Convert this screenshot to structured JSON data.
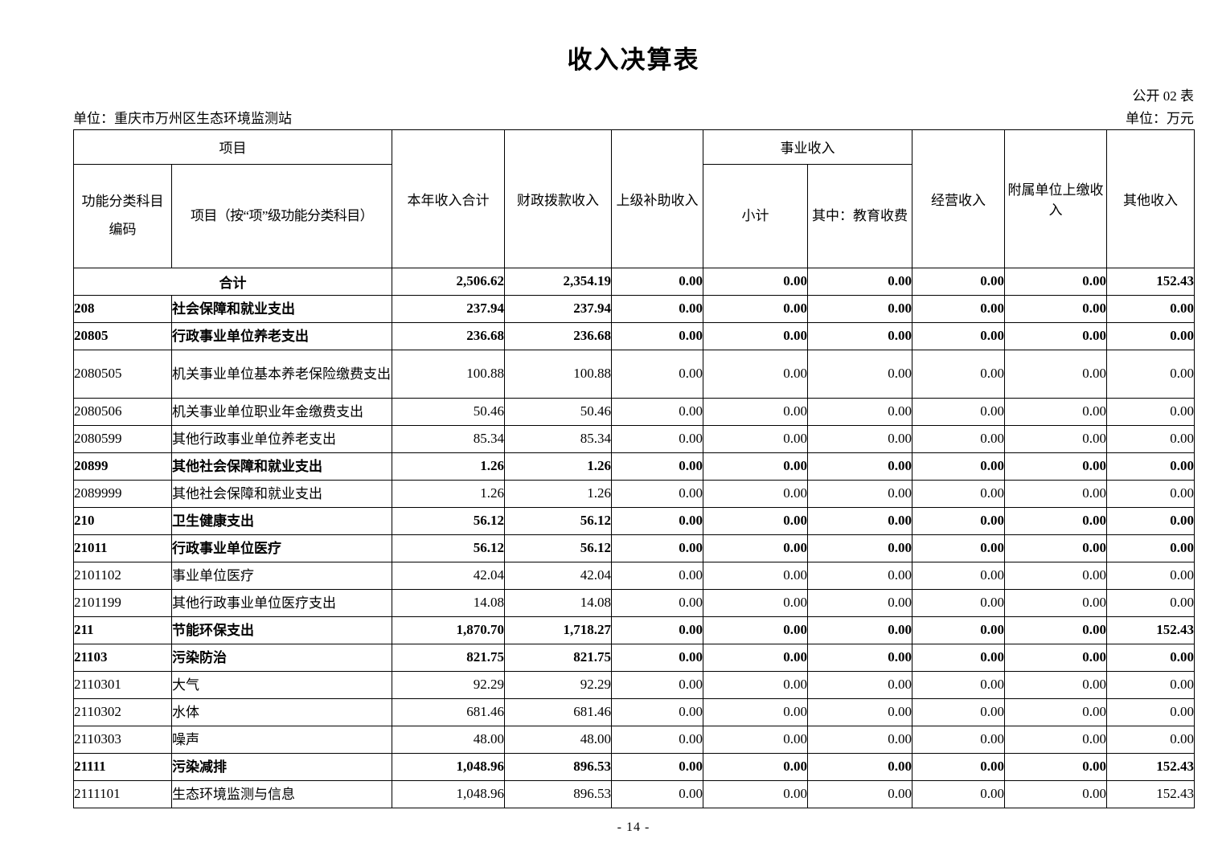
{
  "page": {
    "title": "收入决算表",
    "form_code": "公开 02 表",
    "unit_name": "单位：重庆市万州区生态环境监测站",
    "unit_currency": "单位：万元",
    "page_number": "- 14 -"
  },
  "table": {
    "header": {
      "project_group": "项目",
      "code_col": "功能分类科目编码",
      "name_col": "项目（按“项”级功能分类科目）",
      "total_col": "本年收入合计",
      "fiscal_col": "财政拨款收入",
      "superior_col": "上级补助收入",
      "business_group": "事业收入",
      "business_subtotal_col": "小计",
      "business_edu_col": "其中：教育收费",
      "operating_col": "经营收入",
      "affiliated_col": "附属单位上缴收入",
      "other_col": "其他收入"
    },
    "rows": [
      {
        "code": "",
        "name": "合计",
        "bold": true,
        "total": true,
        "values": [
          "2,506.62",
          "2,354.19",
          "0.00",
          "0.00",
          "0.00",
          "0.00",
          "0.00",
          "152.43"
        ]
      },
      {
        "code": "208",
        "name": "社会保障和就业支出",
        "bold": true,
        "values": [
          "237.94",
          "237.94",
          "0.00",
          "0.00",
          "0.00",
          "0.00",
          "0.00",
          "0.00"
        ]
      },
      {
        "code": "20805",
        "name": "行政事业单位养老支出",
        "bold": true,
        "values": [
          "236.68",
          "236.68",
          "0.00",
          "0.00",
          "0.00",
          "0.00",
          "0.00",
          "0.00"
        ]
      },
      {
        "code": "2080505",
        "name": "机关事业单位基本养老保险缴费支出",
        "bold": false,
        "tall": true,
        "values": [
          "100.88",
          "100.88",
          "0.00",
          "0.00",
          "0.00",
          "0.00",
          "0.00",
          "0.00"
        ]
      },
      {
        "code": "2080506",
        "name": "机关事业单位职业年金缴费支出",
        "bold": false,
        "values": [
          "50.46",
          "50.46",
          "0.00",
          "0.00",
          "0.00",
          "0.00",
          "0.00",
          "0.00"
        ]
      },
      {
        "code": "2080599",
        "name": "其他行政事业单位养老支出",
        "bold": false,
        "values": [
          "85.34",
          "85.34",
          "0.00",
          "0.00",
          "0.00",
          "0.00",
          "0.00",
          "0.00"
        ]
      },
      {
        "code": "20899",
        "name": "其他社会保障和就业支出",
        "bold": true,
        "values": [
          "1.26",
          "1.26",
          "0.00",
          "0.00",
          "0.00",
          "0.00",
          "0.00",
          "0.00"
        ]
      },
      {
        "code": "2089999",
        "name": "其他社会保障和就业支出",
        "bold": false,
        "values": [
          "1.26",
          "1.26",
          "0.00",
          "0.00",
          "0.00",
          "0.00",
          "0.00",
          "0.00"
        ]
      },
      {
        "code": "210",
        "name": "卫生健康支出",
        "bold": true,
        "values": [
          "56.12",
          "56.12",
          "0.00",
          "0.00",
          "0.00",
          "0.00",
          "0.00",
          "0.00"
        ]
      },
      {
        "code": "21011",
        "name": "行政事业单位医疗",
        "bold": true,
        "values": [
          "56.12",
          "56.12",
          "0.00",
          "0.00",
          "0.00",
          "0.00",
          "0.00",
          "0.00"
        ]
      },
      {
        "code": "2101102",
        "name": "事业单位医疗",
        "bold": false,
        "values": [
          "42.04",
          "42.04",
          "0.00",
          "0.00",
          "0.00",
          "0.00",
          "0.00",
          "0.00"
        ]
      },
      {
        "code": "2101199",
        "name": "其他行政事业单位医疗支出",
        "bold": false,
        "values": [
          "14.08",
          "14.08",
          "0.00",
          "0.00",
          "0.00",
          "0.00",
          "0.00",
          "0.00"
        ]
      },
      {
        "code": "211",
        "name": "节能环保支出",
        "bold": true,
        "values": [
          "1,870.70",
          "1,718.27",
          "0.00",
          "0.00",
          "0.00",
          "0.00",
          "0.00",
          "152.43"
        ]
      },
      {
        "code": "21103",
        "name": "污染防治",
        "bold": true,
        "values": [
          "821.75",
          "821.75",
          "0.00",
          "0.00",
          "0.00",
          "0.00",
          "0.00",
          "0.00"
        ]
      },
      {
        "code": "2110301",
        "name": "大气",
        "bold": false,
        "values": [
          "92.29",
          "92.29",
          "0.00",
          "0.00",
          "0.00",
          "0.00",
          "0.00",
          "0.00"
        ]
      },
      {
        "code": "2110302",
        "name": "水体",
        "bold": false,
        "values": [
          "681.46",
          "681.46",
          "0.00",
          "0.00",
          "0.00",
          "0.00",
          "0.00",
          "0.00"
        ]
      },
      {
        "code": "2110303",
        "name": "噪声",
        "bold": false,
        "values": [
          "48.00",
          "48.00",
          "0.00",
          "0.00",
          "0.00",
          "0.00",
          "0.00",
          "0.00"
        ]
      },
      {
        "code": "21111",
        "name": "污染减排",
        "bold": true,
        "values": [
          "1,048.96",
          "896.53",
          "0.00",
          "0.00",
          "0.00",
          "0.00",
          "0.00",
          "152.43"
        ]
      },
      {
        "code": "2111101",
        "name": "生态环境监测与信息",
        "bold": false,
        "values": [
          "1,048.96",
          "896.53",
          "0.00",
          "0.00",
          "0.00",
          "0.00",
          "0.00",
          "152.43"
        ]
      }
    ]
  }
}
